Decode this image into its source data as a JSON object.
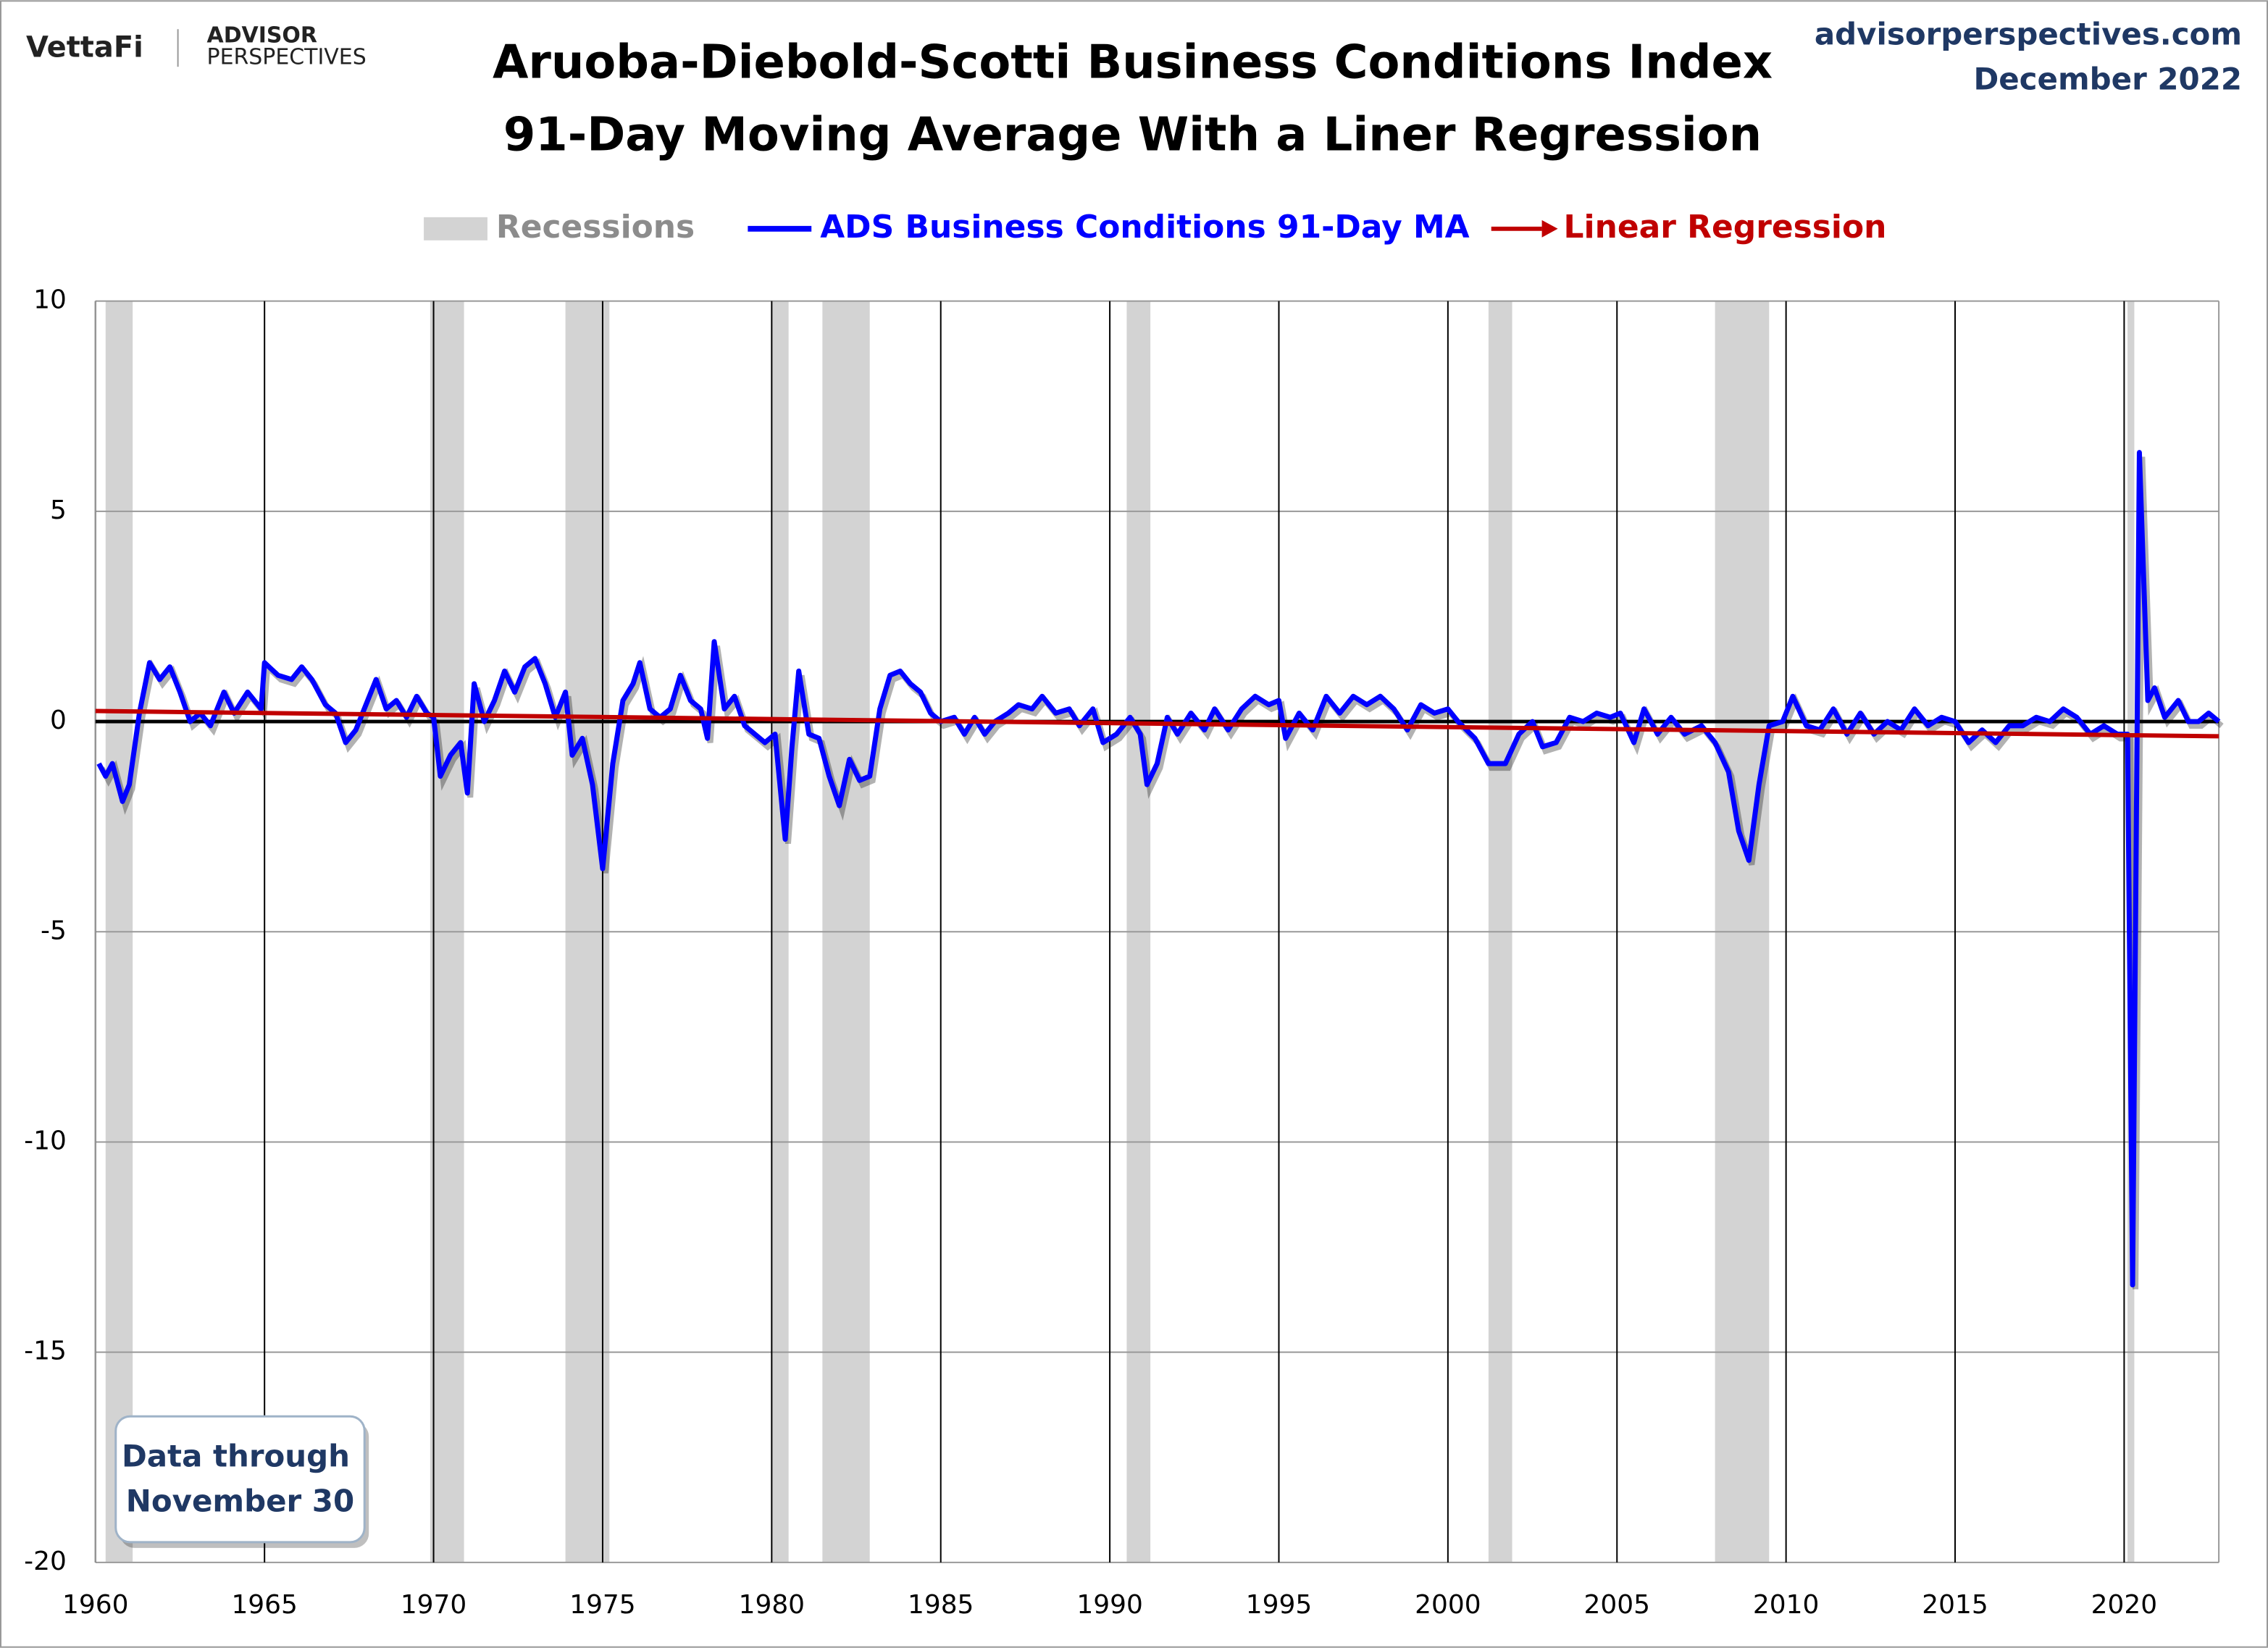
{
  "chart_data": {
    "type": "line",
    "brand": "VettaFi",
    "brand_sub": [
      "ADVISOR",
      "PERSPECTIVES"
    ],
    "site": "advisorperspectives.com",
    "date": "December 2022",
    "title": [
      "Aruoba-Diebold-Scotti Business Conditions Index",
      "91-Day Moving Average With a Liner Regression"
    ],
    "note": [
      "Data through",
      "November 30"
    ],
    "recessions": {
      "name": "Recessions",
      "color": "#d3d3d3",
      "spans": [
        [
          1960.3,
          1961.1
        ],
        [
          1969.9,
          1970.9
        ],
        [
          1973.9,
          1975.2
        ],
        [
          1980.0,
          1980.5
        ],
        [
          1981.5,
          1982.9
        ],
        [
          1990.5,
          1991.2
        ],
        [
          2001.2,
          2001.9
        ],
        [
          2007.9,
          2009.5
        ],
        [
          2020.1,
          2020.3
        ]
      ]
    },
    "xlim": [
      1960,
      2022.8
    ],
    "xticks": [
      1960,
      1965,
      1970,
      1975,
      1980,
      1985,
      1990,
      1995,
      2000,
      2005,
      2010,
      2015,
      2020
    ],
    "ylim": [
      -20,
      10
    ],
    "yticks": [
      -20,
      -15,
      -10,
      -5,
      0,
      5,
      10
    ],
    "reference_line": 0,
    "grid": true,
    "series": [
      {
        "name": "ADS Business Conditions 91-Day MA",
        "color": "#0000ff",
        "x": [
          1960.1,
          1960.3,
          1960.5,
          1960.8,
          1961.0,
          1961.3,
          1961.6,
          1961.9,
          1962.2,
          1962.5,
          1962.8,
          1963.1,
          1963.4,
          1963.8,
          1964.1,
          1964.5,
          1964.9,
          1965.0,
          1965.4,
          1965.8,
          1966.1,
          1966.4,
          1966.8,
          1967.1,
          1967.4,
          1967.7,
          1968.0,
          1968.3,
          1968.6,
          1968.9,
          1969.2,
          1969.5,
          1969.8,
          1970.0,
          1970.2,
          1970.5,
          1970.8,
          1971.0,
          1971.2,
          1971.5,
          1971.8,
          1972.1,
          1972.4,
          1972.7,
          1973.0,
          1973.3,
          1973.6,
          1973.9,
          1974.1,
          1974.4,
          1974.7,
          1975.0,
          1975.3,
          1975.6,
          1975.9,
          1976.1,
          1976.4,
          1976.7,
          1977.0,
          1977.3,
          1977.6,
          1977.9,
          1978.1,
          1978.3,
          1978.6,
          1978.9,
          1979.2,
          1979.5,
          1979.8,
          1980.1,
          1980.4,
          1980.6,
          1980.8,
          1981.1,
          1981.4,
          1981.7,
          1982.0,
          1982.3,
          1982.6,
          1982.9,
          1983.2,
          1983.5,
          1983.8,
          1984.1,
          1984.4,
          1984.7,
          1985.0,
          1985.4,
          1985.7,
          1986.0,
          1986.3,
          1986.6,
          1987.0,
          1987.3,
          1987.7,
          1988.0,
          1988.4,
          1988.8,
          1989.1,
          1989.5,
          1989.8,
          1990.2,
          1990.6,
          1990.9,
          1991.1,
          1991.4,
          1991.7,
          1992.0,
          1992.4,
          1992.8,
          1993.1,
          1993.5,
          1993.9,
          1994.3,
          1994.7,
          1995.0,
          1995.2,
          1995.6,
          1996.0,
          1996.4,
          1996.8,
          1997.2,
          1997.6,
          1998.0,
          1998.4,
          1998.8,
          1999.2,
          1999.6,
          2000.0,
          2000.3,
          2000.8,
          2001.2,
          2001.7,
          2002.1,
          2002.5,
          2002.8,
          2003.2,
          2003.6,
          2004.0,
          2004.4,
          2004.8,
          2005.1,
          2005.5,
          2005.8,
          2006.2,
          2006.6,
          2007.0,
          2007.5,
          2007.9,
          2008.3,
          2008.6,
          2008.9,
          2009.2,
          2009.5,
          2009.9,
          2010.2,
          2010.6,
          2011.0,
          2011.4,
          2011.8,
          2012.2,
          2012.6,
          2013.0,
          2013.4,
          2013.8,
          2014.2,
          2014.6,
          2015.0,
          2015.4,
          2015.8,
          2016.2,
          2016.6,
          2017.0,
          2017.4,
          2017.8,
          2018.2,
          2018.6,
          2019.0,
          2019.4,
          2019.8,
          2020.1,
          2020.25,
          2020.45,
          2020.7,
          2020.9,
          2021.2,
          2021.6,
          2021.9,
          2022.2,
          2022.5,
          2022.8
        ],
        "values": [
          -1.0,
          -1.3,
          -1.0,
          -1.9,
          -1.5,
          0.2,
          1.4,
          1.0,
          1.3,
          0.7,
          0.0,
          0.2,
          -0.1,
          0.7,
          0.2,
          0.7,
          0.3,
          1.4,
          1.1,
          1.0,
          1.3,
          1.0,
          0.4,
          0.2,
          -0.5,
          -0.2,
          0.4,
          1.0,
          0.3,
          0.5,
          0.1,
          0.6,
          0.2,
          0.1,
          -1.3,
          -0.8,
          -0.5,
          -1.7,
          0.9,
          0.0,
          0.5,
          1.2,
          0.7,
          1.3,
          1.5,
          0.9,
          0.1,
          0.7,
          -0.8,
          -0.4,
          -1.5,
          -3.5,
          -1.0,
          0.5,
          0.9,
          1.4,
          0.3,
          0.1,
          0.3,
          1.1,
          0.5,
          0.3,
          -0.4,
          1.9,
          0.3,
          0.6,
          -0.1,
          -0.3,
          -0.5,
          -0.3,
          -2.8,
          -0.6,
          1.2,
          -0.3,
          -0.4,
          -1.3,
          -2.0,
          -0.9,
          -1.4,
          -1.3,
          0.3,
          1.1,
          1.2,
          0.9,
          0.7,
          0.2,
          0.0,
          0.1,
          -0.3,
          0.1,
          -0.3,
          0.0,
          0.2,
          0.4,
          0.3,
          0.6,
          0.2,
          0.3,
          -0.1,
          0.3,
          -0.5,
          -0.3,
          0.1,
          -0.3,
          -1.5,
          -1.0,
          0.1,
          -0.3,
          0.2,
          -0.2,
          0.3,
          -0.2,
          0.3,
          0.6,
          0.4,
          0.5,
          -0.4,
          0.2,
          -0.2,
          0.6,
          0.2,
          0.6,
          0.4,
          0.6,
          0.3,
          -0.2,
          0.4,
          0.2,
          0.3,
          0.0,
          -0.4,
          -1.0,
          -1.0,
          -0.3,
          0.0,
          -0.6,
          -0.5,
          0.1,
          0.0,
          0.2,
          0.1,
          0.2,
          -0.5,
          0.3,
          -0.3,
          0.1,
          -0.3,
          -0.1,
          -0.5,
          -1.2,
          -2.6,
          -3.3,
          -1.5,
          -0.1,
          0.0,
          0.6,
          -0.1,
          -0.2,
          0.3,
          -0.3,
          0.2,
          -0.3,
          0.0,
          -0.2,
          0.3,
          -0.1,
          0.1,
          0.0,
          -0.5,
          -0.2,
          -0.5,
          -0.1,
          -0.1,
          0.1,
          0.0,
          0.3,
          0.1,
          -0.3,
          -0.1,
          -0.3,
          -0.3,
          -13.4,
          6.4,
          0.5,
          0.8,
          0.1,
          0.5,
          0.0,
          0.0,
          0.2,
          0.0
        ]
      },
      {
        "name": "Linear Regression",
        "color": "#c00000",
        "x": [
          1960,
          2022.8
        ],
        "values": [
          0.25,
          -0.35
        ]
      }
    ]
  }
}
